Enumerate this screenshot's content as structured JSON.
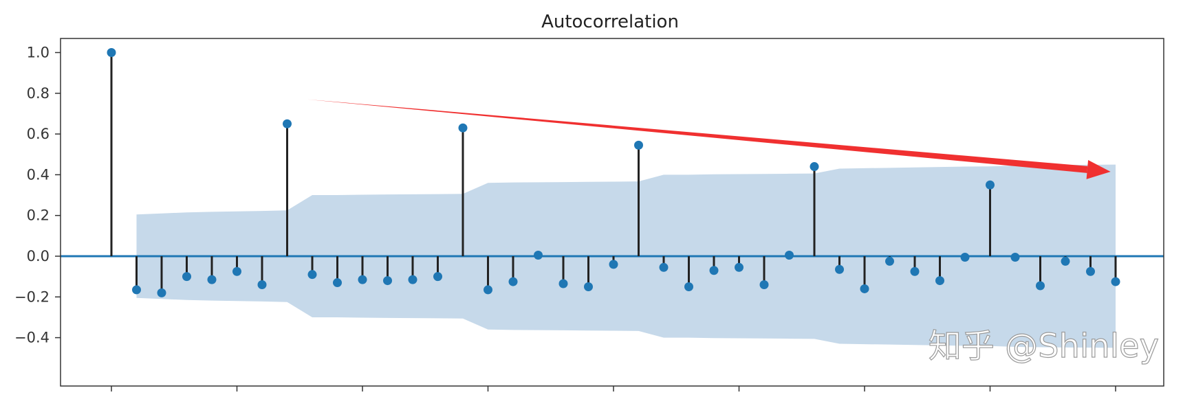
{
  "chart_data": {
    "type": "stem",
    "title": "Autocorrelation",
    "xlabel": "",
    "ylabel": "",
    "xlim": [
      -2,
      42
    ],
    "ylim": [
      -0.52,
      1.06
    ],
    "xticks": [
      0,
      5,
      10,
      15,
      20,
      25,
      30,
      35,
      40
    ],
    "yticks": [
      -0.4,
      -0.2,
      0.0,
      0.2,
      0.4,
      0.6,
      0.8,
      1.0
    ],
    "ytick_labels": [
      "−0.4",
      "−0.2",
      "0.0",
      "0.2",
      "0.4",
      "0.6",
      "0.8",
      "1.0"
    ],
    "grid": false,
    "legend": null,
    "lags": [
      0,
      1,
      2,
      3,
      4,
      5,
      6,
      7,
      8,
      9,
      10,
      11,
      12,
      13,
      14,
      15,
      16,
      17,
      18,
      19,
      20,
      21,
      22,
      23,
      24,
      25,
      26,
      27,
      28,
      29,
      30,
      31,
      32,
      33,
      34,
      35,
      36,
      37,
      38,
      39,
      40
    ],
    "acf": [
      1.0,
      -0.165,
      -0.18,
      -0.1,
      -0.115,
      -0.075,
      -0.14,
      0.65,
      -0.09,
      -0.13,
      -0.115,
      -0.12,
      -0.115,
      -0.1,
      0.63,
      -0.165,
      -0.125,
      0.005,
      -0.135,
      -0.15,
      -0.04,
      0.545,
      -0.055,
      -0.15,
      -0.07,
      -0.055,
      -0.14,
      0.005,
      0.44,
      -0.065,
      -0.16,
      -0.025,
      -0.075,
      -0.12,
      -0.005,
      0.35,
      -0.005,
      -0.145,
      -0.025,
      -0.075,
      -0.125
    ],
    "confidence_band_upper": [
      null,
      0.205,
      0.21,
      0.215,
      0.218,
      0.22,
      0.222,
      0.225,
      0.3,
      0.3,
      0.302,
      0.303,
      0.304,
      0.305,
      0.306,
      0.36,
      0.362,
      0.363,
      0.364,
      0.365,
      0.366,
      0.367,
      0.4,
      0.4,
      0.402,
      0.403,
      0.404,
      0.405,
      0.406,
      0.43,
      0.432,
      0.434,
      0.436,
      0.438,
      0.44,
      0.441,
      0.445,
      0.447,
      0.448,
      0.449,
      0.45
    ],
    "annotations": [
      {
        "type": "arrow",
        "color": "#f03030",
        "from": [
          7.8,
          0.77
        ],
        "to": [
          39.8,
          0.415
        ],
        "meaning": "decaying seasonal peaks at lags 7, 14, 21, 28, 35"
      }
    ],
    "watermark": "知乎 @Shinley",
    "colors": {
      "marker": "#1f77b4",
      "stem": "#222222",
      "zero_line": "#1f77b4",
      "band": "#c6d9ea",
      "arrow": "#f03030"
    }
  }
}
